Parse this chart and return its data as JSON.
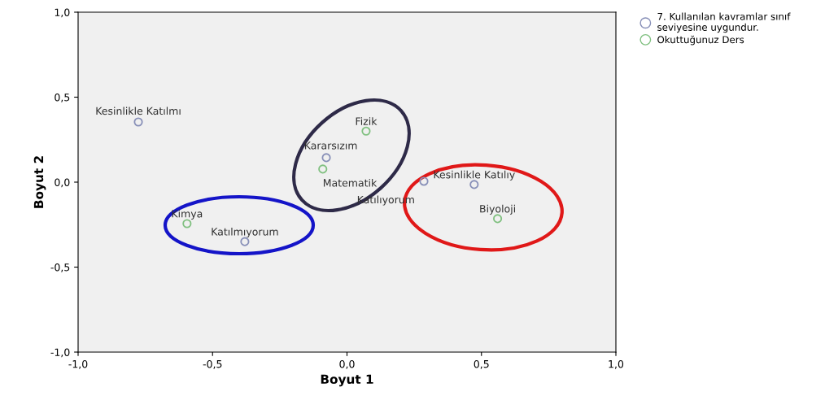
{
  "chart_data": {
    "type": "scatter",
    "xlabel": "Boyut 1",
    "ylabel": "Boyut 2",
    "xlim": [
      -1.0,
      1.0
    ],
    "ylim": [
      -1.0,
      1.0
    ],
    "xticks": [
      {
        "value": -1.0,
        "label": "-1,0"
      },
      {
        "value": -0.5,
        "label": "-0,5"
      },
      {
        "value": 0.0,
        "label": "0,0"
      },
      {
        "value": 0.5,
        "label": "0,5"
      },
      {
        "value": 1.0,
        "label": "1,0"
      }
    ],
    "yticks": [
      {
        "value": -1.0,
        "label": "-1,0"
      },
      {
        "value": -0.5,
        "label": "-0,5"
      },
      {
        "value": 0.0,
        "label": "0,0"
      },
      {
        "value": 0.5,
        "label": "0,5"
      },
      {
        "value": 1.0,
        "label": "1,0"
      }
    ],
    "grid": false,
    "legend": "top right",
    "marker": "circle",
    "series": [
      {
        "name": "7. Kullanılan kavramlar sınıf seviyesine uygundur.",
        "color": "#8890b8",
        "x": [
          -0.776,
          -0.077,
          0.286,
          0.473,
          -0.38
        ],
        "values": [
          0.354,
          0.144,
          0.005,
          -0.014,
          -0.35
        ]
      },
      {
        "name": "Okuttuğunuz Ders",
        "color": "#80c080",
        "x": [
          0.071,
          -0.09,
          0.56,
          -0.595
        ],
        "values": [
          0.3,
          0.077,
          -0.215,
          -0.244
        ]
      }
    ],
    "annotations": [
      {
        "text": "Kesinlikle Katılmı",
        "x": -0.776,
        "y": 0.354
      },
      {
        "text": "Kararsızım",
        "x": -0.077,
        "y": 0.144
      },
      {
        "text": "Katılıyorum",
        "x": 0.286,
        "y": 0.005
      },
      {
        "text": "Kesinlikle Katılıy",
        "x": 0.473,
        "y": -0.014
      },
      {
        "text": "Katılmıyorum",
        "x": -0.38,
        "y": -0.35
      },
      {
        "text": "Fizik",
        "x": 0.071,
        "y": 0.3
      },
      {
        "text": "Matematik",
        "x": -0.09,
        "y": 0.077
      },
      {
        "text": "Biyoloji",
        "x": 0.56,
        "y": -0.215
      },
      {
        "text": "Kimya",
        "x": -0.595,
        "y": -0.244
      }
    ]
  }
}
